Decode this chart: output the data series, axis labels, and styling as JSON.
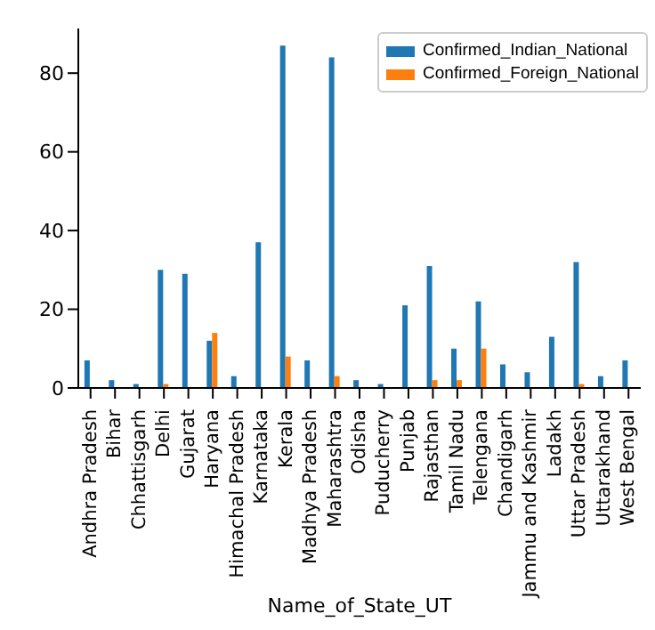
{
  "chart_data": {
    "type": "bar",
    "xlabel": "Name_of_State_UT",
    "categories": [
      "Andhra Pradesh",
      "Bihar",
      "Chhattisgarh",
      "Delhi",
      "Gujarat",
      "Haryana",
      "Himachal Pradesh",
      "Karnataka",
      "Kerala",
      "Madhya Pradesh",
      "Maharashtra",
      "Odisha",
      "Puducherry",
      "Punjab",
      "Rajasthan",
      "Tamil Nadu",
      "Telengana",
      "Chandigarh",
      "Jammu and Kashmir",
      "Ladakh",
      "Uttar Pradesh",
      "Uttarakhand",
      "West Bengal"
    ],
    "series": [
      {
        "name": "Confirmed_Indian_National",
        "color": "#1f77b4",
        "values": [
          7,
          2,
          1,
          30,
          29,
          12,
          3,
          37,
          87,
          7,
          84,
          2,
          1,
          21,
          31,
          10,
          22,
          6,
          4,
          13,
          32,
          3,
          7
        ]
      },
      {
        "name": "Confirmed_Foreign_National",
        "color": "#ff7f0e",
        "values": [
          0,
          0,
          0,
          1,
          0,
          14,
          0,
          0,
          8,
          0,
          3,
          0,
          0,
          0,
          2,
          2,
          10,
          0,
          0,
          0,
          1,
          0,
          0
        ]
      }
    ],
    "ylim": [
      0,
      91.35
    ],
    "yticks": [
      0,
      20,
      40,
      60,
      80
    ],
    "grid": false,
    "legend": "top right"
  }
}
